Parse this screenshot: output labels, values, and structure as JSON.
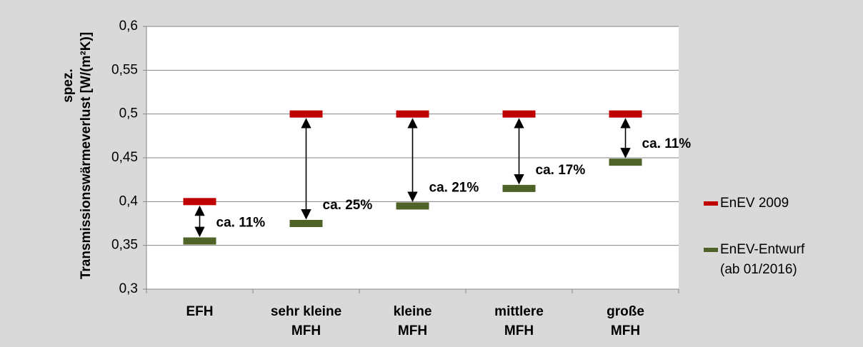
{
  "chart_data": {
    "type": "range-markers",
    "y_title": [
      "spez.",
      "Transmissionswärmeverlust [W/(m²K)]"
    ],
    "categories": [
      [
        "EFH"
      ],
      [
        "sehr kleine",
        "MFH"
      ],
      [
        "kleine",
        "MFH"
      ],
      [
        "mittlere",
        "MFH"
      ],
      [
        "große",
        "MFH"
      ]
    ],
    "series": [
      {
        "name": [
          "EnEV 2009"
        ],
        "color": "#c00000",
        "values": [
          0.4,
          0.5,
          0.5,
          0.5,
          0.5
        ]
      },
      {
        "name": [
          "EnEV-Entwurf",
          "(ab 01/2016)"
        ],
        "color": "#4f6228",
        "values": [
          0.355,
          0.375,
          0.395,
          0.415,
          0.445
        ]
      }
    ],
    "annotations": [
      "ca. 11%",
      "ca. 25%",
      "ca. 21%",
      "ca. 17%",
      "ca. 11%"
    ],
    "ylim": [
      0.3,
      0.6
    ],
    "yticks": [
      {
        "value": 0.3,
        "label": "0,3"
      },
      {
        "value": 0.35,
        "label": "0,35"
      },
      {
        "value": 0.4,
        "label": "0,4"
      },
      {
        "value": 0.45,
        "label": "0,45"
      },
      {
        "value": 0.5,
        "label": "0,5"
      },
      {
        "value": 0.55,
        "label": "0,55"
      },
      {
        "value": 0.6,
        "label": "0,6"
      }
    ],
    "grid": true,
    "legend": "right"
  }
}
